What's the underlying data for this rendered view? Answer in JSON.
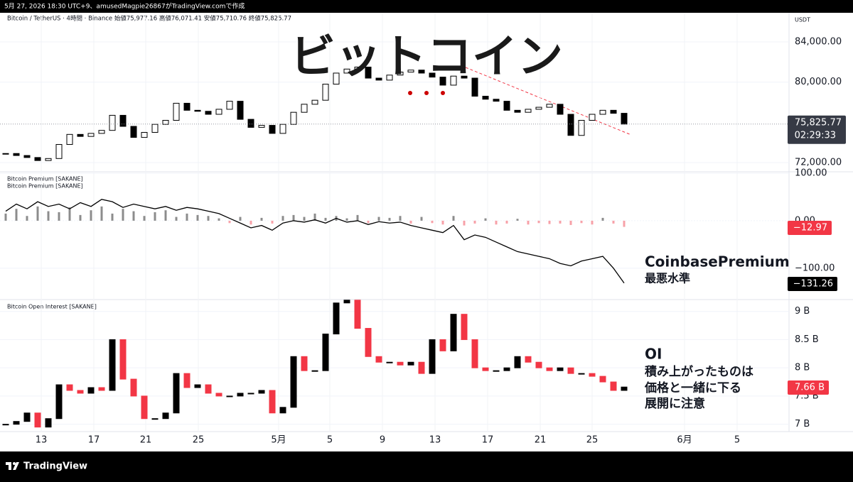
{
  "header": {
    "caption": "5月 27, 2026 18:30 UTC+9、amusedMagpie26867がTradingView.comで作成",
    "brand": "TradingView"
  },
  "time_axis": {
    "labels": [
      "13",
      "17",
      "21",
      "25",
      "5月",
      "5",
      "9",
      "13",
      "17",
      "21",
      "25",
      "6月",
      "5"
    ]
  },
  "chart_data": [
    {
      "type": "candlestick",
      "info": "Bitcoin / TetherUS · 4時間 · Binance  始値75,977.16  高値76,071.41  安値75,710.76  終値75,825.77",
      "currency": "USDT",
      "title": "ビットコイン",
      "ylim": [
        71080,
        86900
      ],
      "yticks": [
        {
          "value": 72000,
          "label": "72,000.00"
        },
        {
          "value": 80000,
          "label": "80,000.00"
        },
        {
          "value": 84000,
          "label": "84,000.00"
        }
      ],
      "series": [
        {
          "name": "Bitcoin / TetherUS",
          "color": "#000000",
          "values": [
            72900,
            72700,
            72500,
            72200,
            72400,
            73800,
            74800,
            74600,
            74900,
            75200,
            76700,
            75600,
            74500,
            75000,
            75800,
            76200,
            77900,
            77200,
            77100,
            76800,
            77300,
            78100,
            76300,
            75500,
            75700,
            74900,
            75800,
            77000,
            77800,
            78200,
            79800,
            80900,
            81300,
            81500,
            80400,
            80200,
            80700,
            81000,
            81200,
            80900,
            80500,
            79700,
            80600,
            80400,
            78600,
            78300,
            78100,
            77200,
            77000,
            77300,
            77500,
            77800,
            76800,
            74700,
            76200,
            76800,
            77200,
            76900,
            75825.77
          ],
          "last_label": "75,825.77",
          "countdown": "02:29:33"
        }
      ]
    },
    {
      "type": "line-histogram",
      "ylim": [
        -166,
        103
      ],
      "yticks": [
        {
          "value": 100,
          "label": "100.00"
        },
        {
          "value": 0,
          "label": "0.00"
        },
        {
          "value": -100,
          "label": "−100.00"
        }
      ],
      "series": [
        {
          "name": "Bitcoin Premium [SAKANE]",
          "color": "#000000",
          "values": [
            20,
            35,
            25,
            40,
            30,
            35,
            25,
            38,
            30,
            45,
            40,
            28,
            35,
            30,
            25,
            30,
            22,
            28,
            25,
            20,
            15,
            5,
            -5,
            -15,
            -10,
            -20,
            -5,
            0,
            -3,
            2,
            -5,
            5,
            -3,
            0,
            -8,
            -2,
            -5,
            -3,
            -10,
            -15,
            -20,
            -25,
            -10,
            -40,
            -30,
            -35,
            -45,
            -55,
            -65,
            -70,
            -75,
            -80,
            -90,
            -95,
            -85,
            -80,
            -75,
            -100,
            -131.26
          ],
          "last_label": "−131.26"
        },
        {
          "name": "Bitcoin Premium [SAKANE]",
          "color": "#8c8c8c",
          "negative_color": "#f7a1a8",
          "values": [
            15,
            25,
            10,
            30,
            20,
            18,
            28,
            12,
            22,
            30,
            15,
            25,
            20,
            10,
            18,
            22,
            8,
            15,
            12,
            10,
            5,
            -5,
            8,
            -8,
            6,
            -6,
            10,
            12,
            8,
            15,
            6,
            10,
            5,
            12,
            -5,
            8,
            6,
            10,
            -6,
            8,
            -5,
            -8,
            10,
            -10,
            -6,
            5,
            -8,
            -6,
            4,
            -8,
            -5,
            -7,
            -6,
            -9,
            -5,
            -8,
            6,
            -6,
            -12.97
          ],
          "last_label": "−12.97"
        }
      ],
      "annotations": [
        "CoinbasePremium",
        "最悪水準"
      ]
    },
    {
      "type": "candlestick",
      "ylim": [
        6.87,
        9.21
      ],
      "yticks": [
        {
          "value": 7,
          "label": "7 B"
        },
        {
          "value": 7.5,
          "label": "7.5 B"
        },
        {
          "value": 8,
          "label": "8 B"
        },
        {
          "value": 8.5,
          "label": "8.5 B"
        },
        {
          "value": 9,
          "label": "9 B"
        }
      ],
      "series": [
        {
          "name": "Bitcoin Open Interest [SAKANE]",
          "color": "#000000",
          "down_color": "#f23645",
          "values": [
            7.0,
            7.05,
            7.2,
            6.95,
            7.1,
            7.7,
            7.6,
            7.55,
            7.65,
            7.6,
            8.5,
            7.8,
            7.5,
            7.1,
            7.1,
            7.2,
            7.9,
            7.65,
            7.7,
            7.55,
            7.5,
            7.5,
            7.55,
            7.55,
            7.6,
            7.2,
            7.3,
            8.2,
            7.95,
            7.95,
            8.6,
            9.15,
            9.2,
            8.7,
            8.2,
            8.1,
            8.1,
            8.05,
            8.1,
            7.9,
            8.5,
            8.3,
            8.95,
            8.5,
            8.0,
            7.95,
            7.95,
            8.0,
            8.2,
            8.1,
            8.0,
            7.95,
            8.0,
            7.9,
            7.9,
            7.85,
            7.75,
            7.6,
            7.66
          ],
          "last_label": "7.66 B"
        }
      ],
      "annotations": [
        "OI",
        "積み上がったものは",
        "価格と一緒に下る",
        "展開に注意"
      ]
    }
  ]
}
